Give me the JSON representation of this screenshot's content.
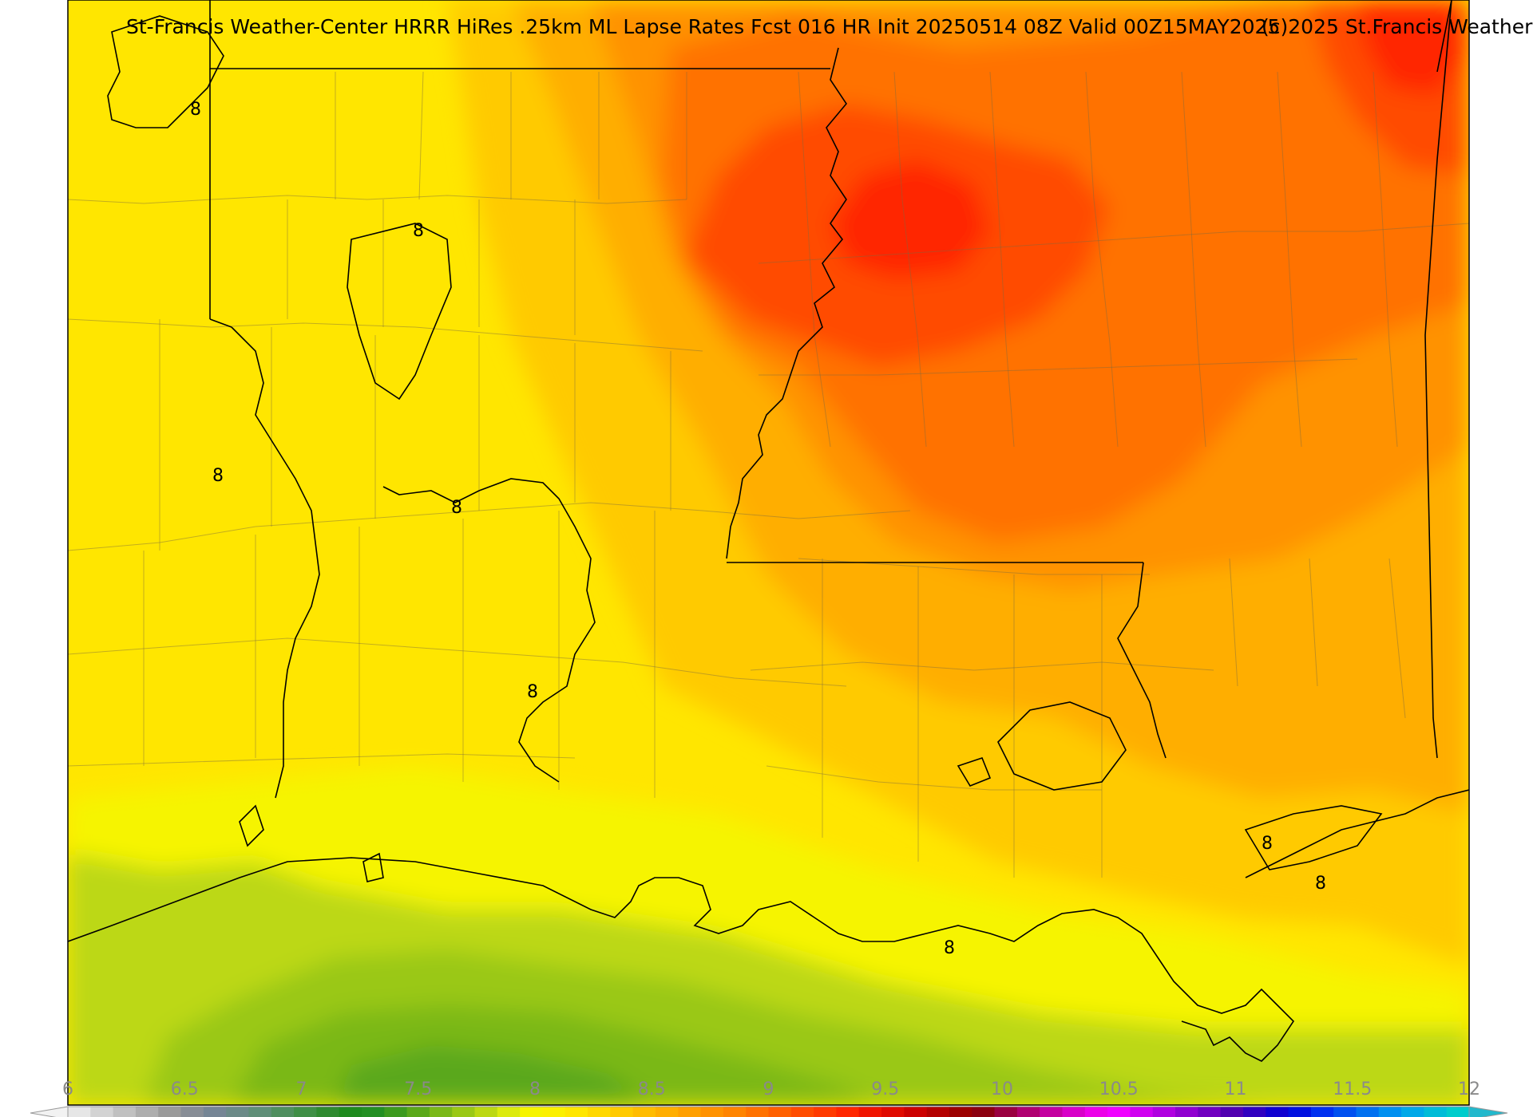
{
  "title": {
    "left": "St-Francis Weather-Center HRRR HiRes .25km ML Lapse Rates  Fcst 016 HR Init 20250514 08Z  Valid 00Z15MAY2025",
    "right": "(c)2025 St.Francis Weather"
  },
  "contour": {
    "value_label": "8",
    "line_color": "#000000"
  },
  "colorbar": {
    "min": 6,
    "max": 12,
    "step": 0.125,
    "tick_labels": [
      "6",
      "6.5",
      "7",
      "7.5",
      "8",
      "8.5",
      "9",
      "9.5",
      "10",
      "10.5",
      "11",
      "11.5",
      "12"
    ],
    "colors": [
      "#e6e6e6",
      "#d3d3d3",
      "#c0c0c0",
      "#adadad",
      "#9a9a9a",
      "#878d96",
      "#758595",
      "#6b8a88",
      "#5f8f78",
      "#4f8f5f",
      "#3f8f46",
      "#2f8a30",
      "#1e8a1e",
      "#238f23",
      "#3c9a1e",
      "#5aa81a",
      "#7ab818",
      "#9ac815",
      "#bcd812",
      "#dcea0e",
      "#f6f400",
      "#fbf000",
      "#ffe600",
      "#ffd800",
      "#ffca00",
      "#ffbc00",
      "#ffae00",
      "#ffa000",
      "#ff9200",
      "#ff8400",
      "#ff7200",
      "#ff6000",
      "#ff4c00",
      "#ff3a00",
      "#ff2600",
      "#f01400",
      "#e00a00",
      "#cc0000",
      "#b40000",
      "#9c0000",
      "#8c0010",
      "#9a0040",
      "#b00070",
      "#c400a0",
      "#d800c8",
      "#ec00e8",
      "#f000ff",
      "#d000f0",
      "#b000e0",
      "#9000d0",
      "#7000c0",
      "#5000b0",
      "#3000c0",
      "#1000d0",
      "#0010e0",
      "#0030f0",
      "#0050f0",
      "#0070f0",
      "#0090f0",
      "#00a8e8",
      "#00bcd8",
      "#00cccc"
    ],
    "under_color": "#f2f2f2",
    "over_color": "#22b8cc"
  },
  "field_colors": {
    "yellow": "#ffe600",
    "lemon": "#f6f400",
    "lime": "#bcd812",
    "green_light": "#9ac815",
    "green_mid": "#7ab818",
    "green_dark": "#5aa81a",
    "amber": "#ffca00",
    "orange_light": "#ffae00",
    "orange": "#ff9200",
    "orange_deep": "#ff7200",
    "red_orange": "#ff4c00",
    "red": "#ff2600"
  }
}
